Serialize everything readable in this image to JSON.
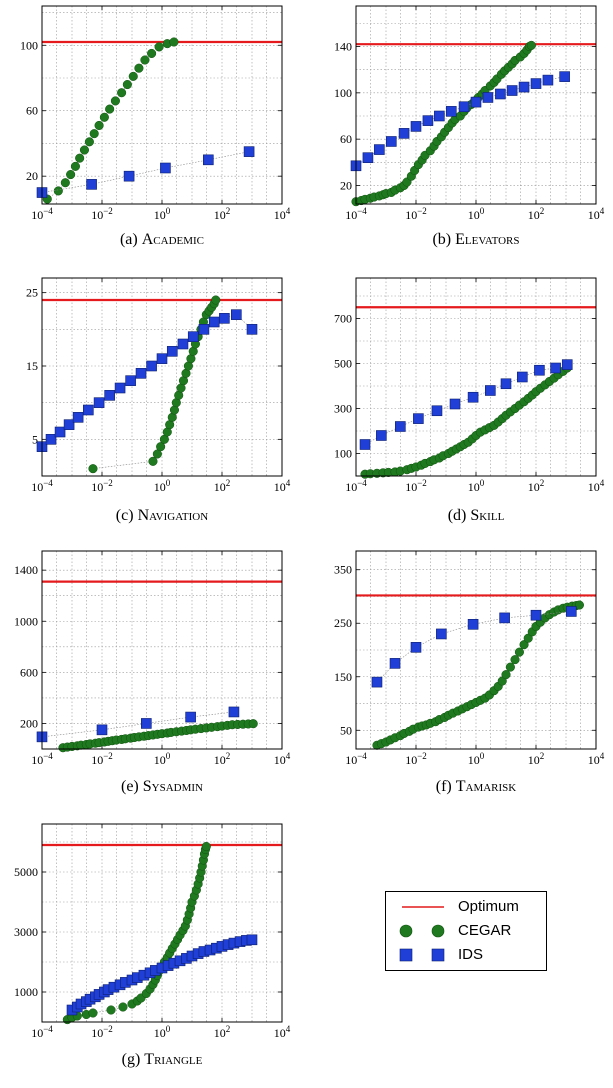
{
  "colors": {
    "optimum": "#e41a1c",
    "cegar": "#1f7a1f",
    "ids": "#1f3fd6",
    "grid": "#9a9a9a"
  },
  "legend": {
    "placement": "right of panel (g)",
    "items": [
      {
        "label": "Optimum",
        "marker": "line"
      },
      {
        "label": "CEGAR",
        "marker": "circle"
      },
      {
        "label": "IDS",
        "marker": "square"
      }
    ]
  },
  "chart_data": [
    {
      "type": "scatter",
      "id": "a",
      "caption_prefix": "(a) ",
      "caption_name": "Academic",
      "x_scale": "log",
      "xlim": [
        0.0001,
        10000
      ],
      "x_ticks": [
        0.0001,
        0.01,
        1,
        100,
        10000
      ],
      "ylim": [
        3,
        124
      ],
      "y_ticks": [
        20,
        60,
        100
      ],
      "grid": true,
      "optimum": 102,
      "series": [
        {
          "name": "CEGAR",
          "x": [
            0.00015,
            0.00035,
            0.0006,
            0.0009,
            0.0013,
            0.0018,
            0.0026,
            0.0038,
            0.0055,
            0.008,
            0.012,
            0.018,
            0.028,
            0.045,
            0.07,
            0.11,
            0.17,
            0.27,
            0.45,
            0.8,
            1.5,
            2.5
          ],
          "y": [
            6,
            11,
            16,
            21,
            26,
            31,
            36,
            41,
            46,
            51,
            56,
            61,
            66,
            71,
            76,
            81,
            86,
            91,
            95,
            99,
            101,
            102
          ]
        },
        {
          "name": "IDS",
          "x": [
            0.0001,
            0.0045,
            0.08,
            1.3,
            35,
            800
          ],
          "y": [
            10,
            15,
            20,
            25,
            30,
            35
          ]
        }
      ]
    },
    {
      "type": "scatter",
      "id": "b",
      "caption_prefix": "(b) ",
      "caption_name": "Elevators",
      "x_scale": "log",
      "xlim": [
        0.0001,
        10000
      ],
      "x_ticks": [
        0.0001,
        0.01,
        1,
        100,
        10000
      ],
      "ylim": [
        4,
        175
      ],
      "y_ticks": [
        20,
        60,
        100,
        140
      ],
      "grid": true,
      "optimum": 142,
      "series": [
        {
          "name": "CEGAR",
          "x": [
            0.0001,
            0.00015,
            0.0002,
            0.0003,
            0.0004,
            0.0006,
            0.0008,
            0.001,
            0.0015,
            0.002,
            0.003,
            0.004,
            0.005,
            0.007,
            0.009,
            0.012,
            0.016,
            0.02,
            0.03,
            0.04,
            0.05,
            0.07,
            0.09,
            0.12,
            0.16,
            0.2,
            0.3,
            0.4,
            0.5,
            0.7,
            0.9,
            1.2,
            1.6,
            2,
            3,
            4,
            5,
            7,
            9,
            12,
            16,
            20,
            30,
            40,
            50,
            60,
            70
          ],
          "y": [
            6,
            7,
            8,
            9,
            10,
            11,
            12,
            13,
            14,
            16,
            18,
            20,
            23,
            28,
            33,
            38,
            42,
            46,
            50,
            54,
            58,
            62,
            66,
            70,
            74,
            77,
            80,
            84,
            87,
            90,
            93,
            96,
            99,
            102,
            106,
            109,
            112,
            116,
            119,
            122,
            125,
            128,
            131,
            134,
            137,
            140,
            141
          ]
        },
        {
          "name": "IDS",
          "x": [
            0.0001,
            0.00025,
            0.0006,
            0.0015,
            0.004,
            0.01,
            0.025,
            0.06,
            0.15,
            0.4,
            1,
            2.5,
            6.5,
            16,
            40,
            100,
            250,
            900
          ],
          "y": [
            37,
            44,
            51,
            58,
            65,
            71,
            76,
            80,
            84,
            88,
            92,
            96,
            99,
            102,
            105,
            108,
            111,
            114
          ]
        }
      ]
    },
    {
      "type": "scatter",
      "id": "c",
      "caption_prefix": "(c) ",
      "caption_name": "Navigation",
      "x_scale": "log",
      "xlim": [
        0.0001,
        10000
      ],
      "x_ticks": [
        0.0001,
        0.01,
        1,
        100,
        10000
      ],
      "ylim": [
        0,
        27
      ],
      "y_ticks": [
        5,
        15,
        25
      ],
      "grid": true,
      "optimum": 24,
      "series": [
        {
          "name": "CEGAR",
          "x": [
            0.005,
            0.5,
            0.7,
            0.9,
            1.2,
            1.5,
            1.8,
            2.2,
            2.6,
            3,
            3.6,
            4.3,
            5.2,
            6.3,
            7.6,
            9.2,
            11,
            13,
            16,
            20,
            24,
            30,
            37,
            45,
            55,
            62
          ],
          "y": [
            1,
            2,
            3,
            4,
            5,
            6,
            7,
            8,
            9,
            10,
            11,
            12,
            13,
            14,
            15,
            16,
            17,
            18,
            19,
            20,
            21,
            22,
            22.5,
            23,
            23.5,
            24
          ]
        },
        {
          "name": "IDS",
          "x": [
            0.0001,
            0.0002,
            0.0004,
            0.0008,
            0.0016,
            0.0035,
            0.008,
            0.018,
            0.04,
            0.09,
            0.2,
            0.45,
            1,
            2.2,
            5,
            11,
            25,
            55,
            120,
            300,
            1000
          ],
          "y": [
            4,
            5,
            6,
            7,
            8,
            9,
            10,
            11,
            12,
            13,
            14,
            15,
            16,
            17,
            18,
            19,
            20,
            21,
            21.5,
            22,
            20
          ]
        }
      ]
    },
    {
      "type": "scatter",
      "id": "d",
      "caption_prefix": "(d) ",
      "caption_name": "Skill",
      "x_scale": "log",
      "xlim": [
        0.0001,
        10000
      ],
      "x_ticks": [
        0.0001,
        0.01,
        1,
        100,
        10000
      ],
      "ylim": [
        0,
        880
      ],
      "y_ticks": [
        100,
        300,
        500,
        700
      ],
      "grid": true,
      "optimum": 750,
      "series": [
        {
          "name": "CEGAR",
          "x": [
            0.0002,
            0.0003,
            0.0005,
            0.0008,
            0.0012,
            0.002,
            0.003,
            0.005,
            0.007,
            0.01,
            0.015,
            0.02,
            0.03,
            0.04,
            0.06,
            0.08,
            0.12,
            0.16,
            0.22,
            0.3,
            0.4,
            0.55,
            0.75,
            1,
            1.4,
            2,
            2.8,
            4,
            5.5,
            7.5,
            10,
            14,
            20,
            28,
            40,
            55,
            75,
            100,
            140,
            200,
            280,
            400,
            550,
            800,
            1100
          ],
          "y": [
            8,
            10,
            12,
            14,
            16,
            18,
            22,
            28,
            34,
            40,
            48,
            56,
            64,
            72,
            80,
            90,
            100,
            110,
            120,
            130,
            140,
            150,
            165,
            180,
            195,
            205,
            215,
            225,
            240,
            255,
            270,
            285,
            300,
            315,
            330,
            345,
            360,
            375,
            390,
            405,
            420,
            435,
            450,
            465,
            480
          ]
        },
        {
          "name": "IDS",
          "x": [
            0.0002,
            0.0007,
            0.003,
            0.012,
            0.05,
            0.2,
            0.8,
            3,
            10,
            35,
            130,
            450,
            1100
          ],
          "y": [
            140,
            180,
            220,
            255,
            290,
            320,
            350,
            380,
            410,
            440,
            470,
            480,
            495
          ]
        }
      ]
    },
    {
      "type": "scatter",
      "id": "e",
      "caption_prefix": "(e) ",
      "caption_name": "Sysadmin",
      "x_scale": "log",
      "xlim": [
        0.0001,
        10000
      ],
      "x_ticks": [
        0.0001,
        0.01,
        1,
        100,
        10000
      ],
      "ylim": [
        0,
        1550
      ],
      "y_ticks": [
        200,
        600,
        1000,
        1400
      ],
      "grid": true,
      "optimum": 1310,
      "series": [
        {
          "name": "CEGAR",
          "x": [
            0.0005,
            0.0007,
            0.001,
            0.0015,
            0.002,
            0.003,
            0.004,
            0.006,
            0.008,
            0.012,
            0.016,
            0.022,
            0.03,
            0.045,
            0.06,
            0.09,
            0.12,
            0.17,
            0.25,
            0.35,
            0.5,
            0.7,
            1,
            1.5,
            2,
            3,
            4.5,
            6.5,
            9,
            13,
            20,
            30,
            45,
            70,
            100,
            150,
            220,
            330,
            500,
            750,
            1100
          ],
          "y": [
            10,
            15,
            20,
            25,
            30,
            35,
            40,
            45,
            50,
            55,
            60,
            65,
            70,
            75,
            80,
            85,
            90,
            95,
            100,
            105,
            110,
            115,
            120,
            125,
            130,
            135,
            140,
            145,
            150,
            155,
            160,
            165,
            170,
            175,
            180,
            185,
            190,
            192,
            194,
            196,
            198
          ]
        },
        {
          "name": "IDS",
          "x": [
            0.0001,
            0.01,
            0.3,
            9,
            250
          ],
          "y": [
            95,
            150,
            200,
            250,
            290
          ]
        }
      ]
    },
    {
      "type": "scatter",
      "id": "f",
      "caption_prefix": "(f) ",
      "caption_name": "Tamarisk",
      "x_scale": "log",
      "xlim": [
        0.0001,
        10000
      ],
      "x_ticks": [
        0.0001,
        0.01,
        1,
        100,
        10000
      ],
      "ylim": [
        15,
        385
      ],
      "y_ticks": [
        50,
        150,
        250,
        350
      ],
      "grid": true,
      "optimum": 302,
      "series": [
        {
          "name": "CEGAR",
          "x": [
            0.0005,
            0.0007,
            0.001,
            0.0014,
            0.002,
            0.003,
            0.004,
            0.006,
            0.008,
            0.012,
            0.016,
            0.022,
            0.03,
            0.045,
            0.06,
            0.09,
            0.12,
            0.17,
            0.25,
            0.35,
            0.5,
            0.7,
            1,
            1.4,
            2,
            2.8,
            4,
            5.5,
            7.5,
            10,
            14,
            20,
            28,
            40,
            55,
            75,
            100,
            140,
            200,
            280,
            400,
            550,
            800,
            1100,
            1600,
            2200,
            2800
          ],
          "y": [
            22,
            25,
            28,
            32,
            36,
            40,
            44,
            48,
            52,
            56,
            58,
            60,
            63,
            66,
            70,
            74,
            78,
            82,
            86,
            90,
            94,
            98,
            102,
            106,
            110,
            116,
            124,
            132,
            142,
            154,
            168,
            182,
            196,
            210,
            222,
            234,
            244,
            252,
            260,
            266,
            271,
            275,
            278,
            280,
            282,
            283,
            284
          ]
        },
        {
          "name": "IDS",
          "x": [
            0.0005,
            0.002,
            0.01,
            0.07,
            0.8,
            9,
            100,
            1500
          ],
          "y": [
            140,
            175,
            205,
            230,
            248,
            260,
            265,
            272
          ]
        }
      ]
    },
    {
      "type": "scatter",
      "id": "g",
      "caption_prefix": "(g) ",
      "caption_name": "Triangle",
      "x_scale": "log",
      "xlim": [
        0.0001,
        10000
      ],
      "x_ticks": [
        0.0001,
        0.01,
        1,
        100,
        10000
      ],
      "ylim": [
        0,
        6600
      ],
      "y_ticks": [
        1000,
        3000,
        5000
      ],
      "grid": true,
      "optimum": 5900,
      "series": [
        {
          "name": "CEGAR",
          "x": [
            0.0007,
            0.001,
            0.0015,
            0.003,
            0.005,
            0.02,
            0.05,
            0.1,
            0.15,
            0.2,
            0.3,
            0.4,
            0.5,
            0.6,
            0.7,
            0.8,
            1,
            1.2,
            1.5,
            1.8,
            2.2,
            2.7,
            3.3,
            4,
            5,
            6,
            7,
            8,
            9,
            10,
            12,
            14,
            16,
            18,
            20,
            22,
            24,
            26,
            28,
            30
          ],
          "y": [
            80,
            150,
            200,
            250,
            300,
            400,
            500,
            600,
            700,
            800,
            950,
            1100,
            1250,
            1400,
            1550,
            1700,
            1850,
            2000,
            2150,
            2300,
            2450,
            2600,
            2750,
            2900,
            3050,
            3200,
            3400,
            3600,
            3800,
            4000,
            4200,
            4400,
            4600,
            4800,
            5000,
            5200,
            5400,
            5600,
            5750,
            5850
          ]
        },
        {
          "name": "IDS",
          "x": [
            0.001,
            0.0015,
            0.002,
            0.003,
            0.004,
            0.006,
            0.008,
            0.012,
            0.016,
            0.025,
            0.04,
            0.06,
            0.1,
            0.15,
            0.25,
            0.4,
            0.6,
            1,
            1.6,
            2.5,
            4,
            6.5,
            10,
            16,
            25,
            40,
            65,
            100,
            160,
            250,
            400,
            650,
            1000
          ],
          "y": [
            400,
            500,
            600,
            680,
            760,
            840,
            920,
            1000,
            1080,
            1160,
            1240,
            1320,
            1400,
            1480,
            1560,
            1640,
            1720,
            1800,
            1880,
            1960,
            2040,
            2120,
            2200,
            2280,
            2350,
            2400,
            2460,
            2520,
            2580,
            2630,
            2680,
            2720,
            2740
          ]
        }
      ]
    }
  ]
}
